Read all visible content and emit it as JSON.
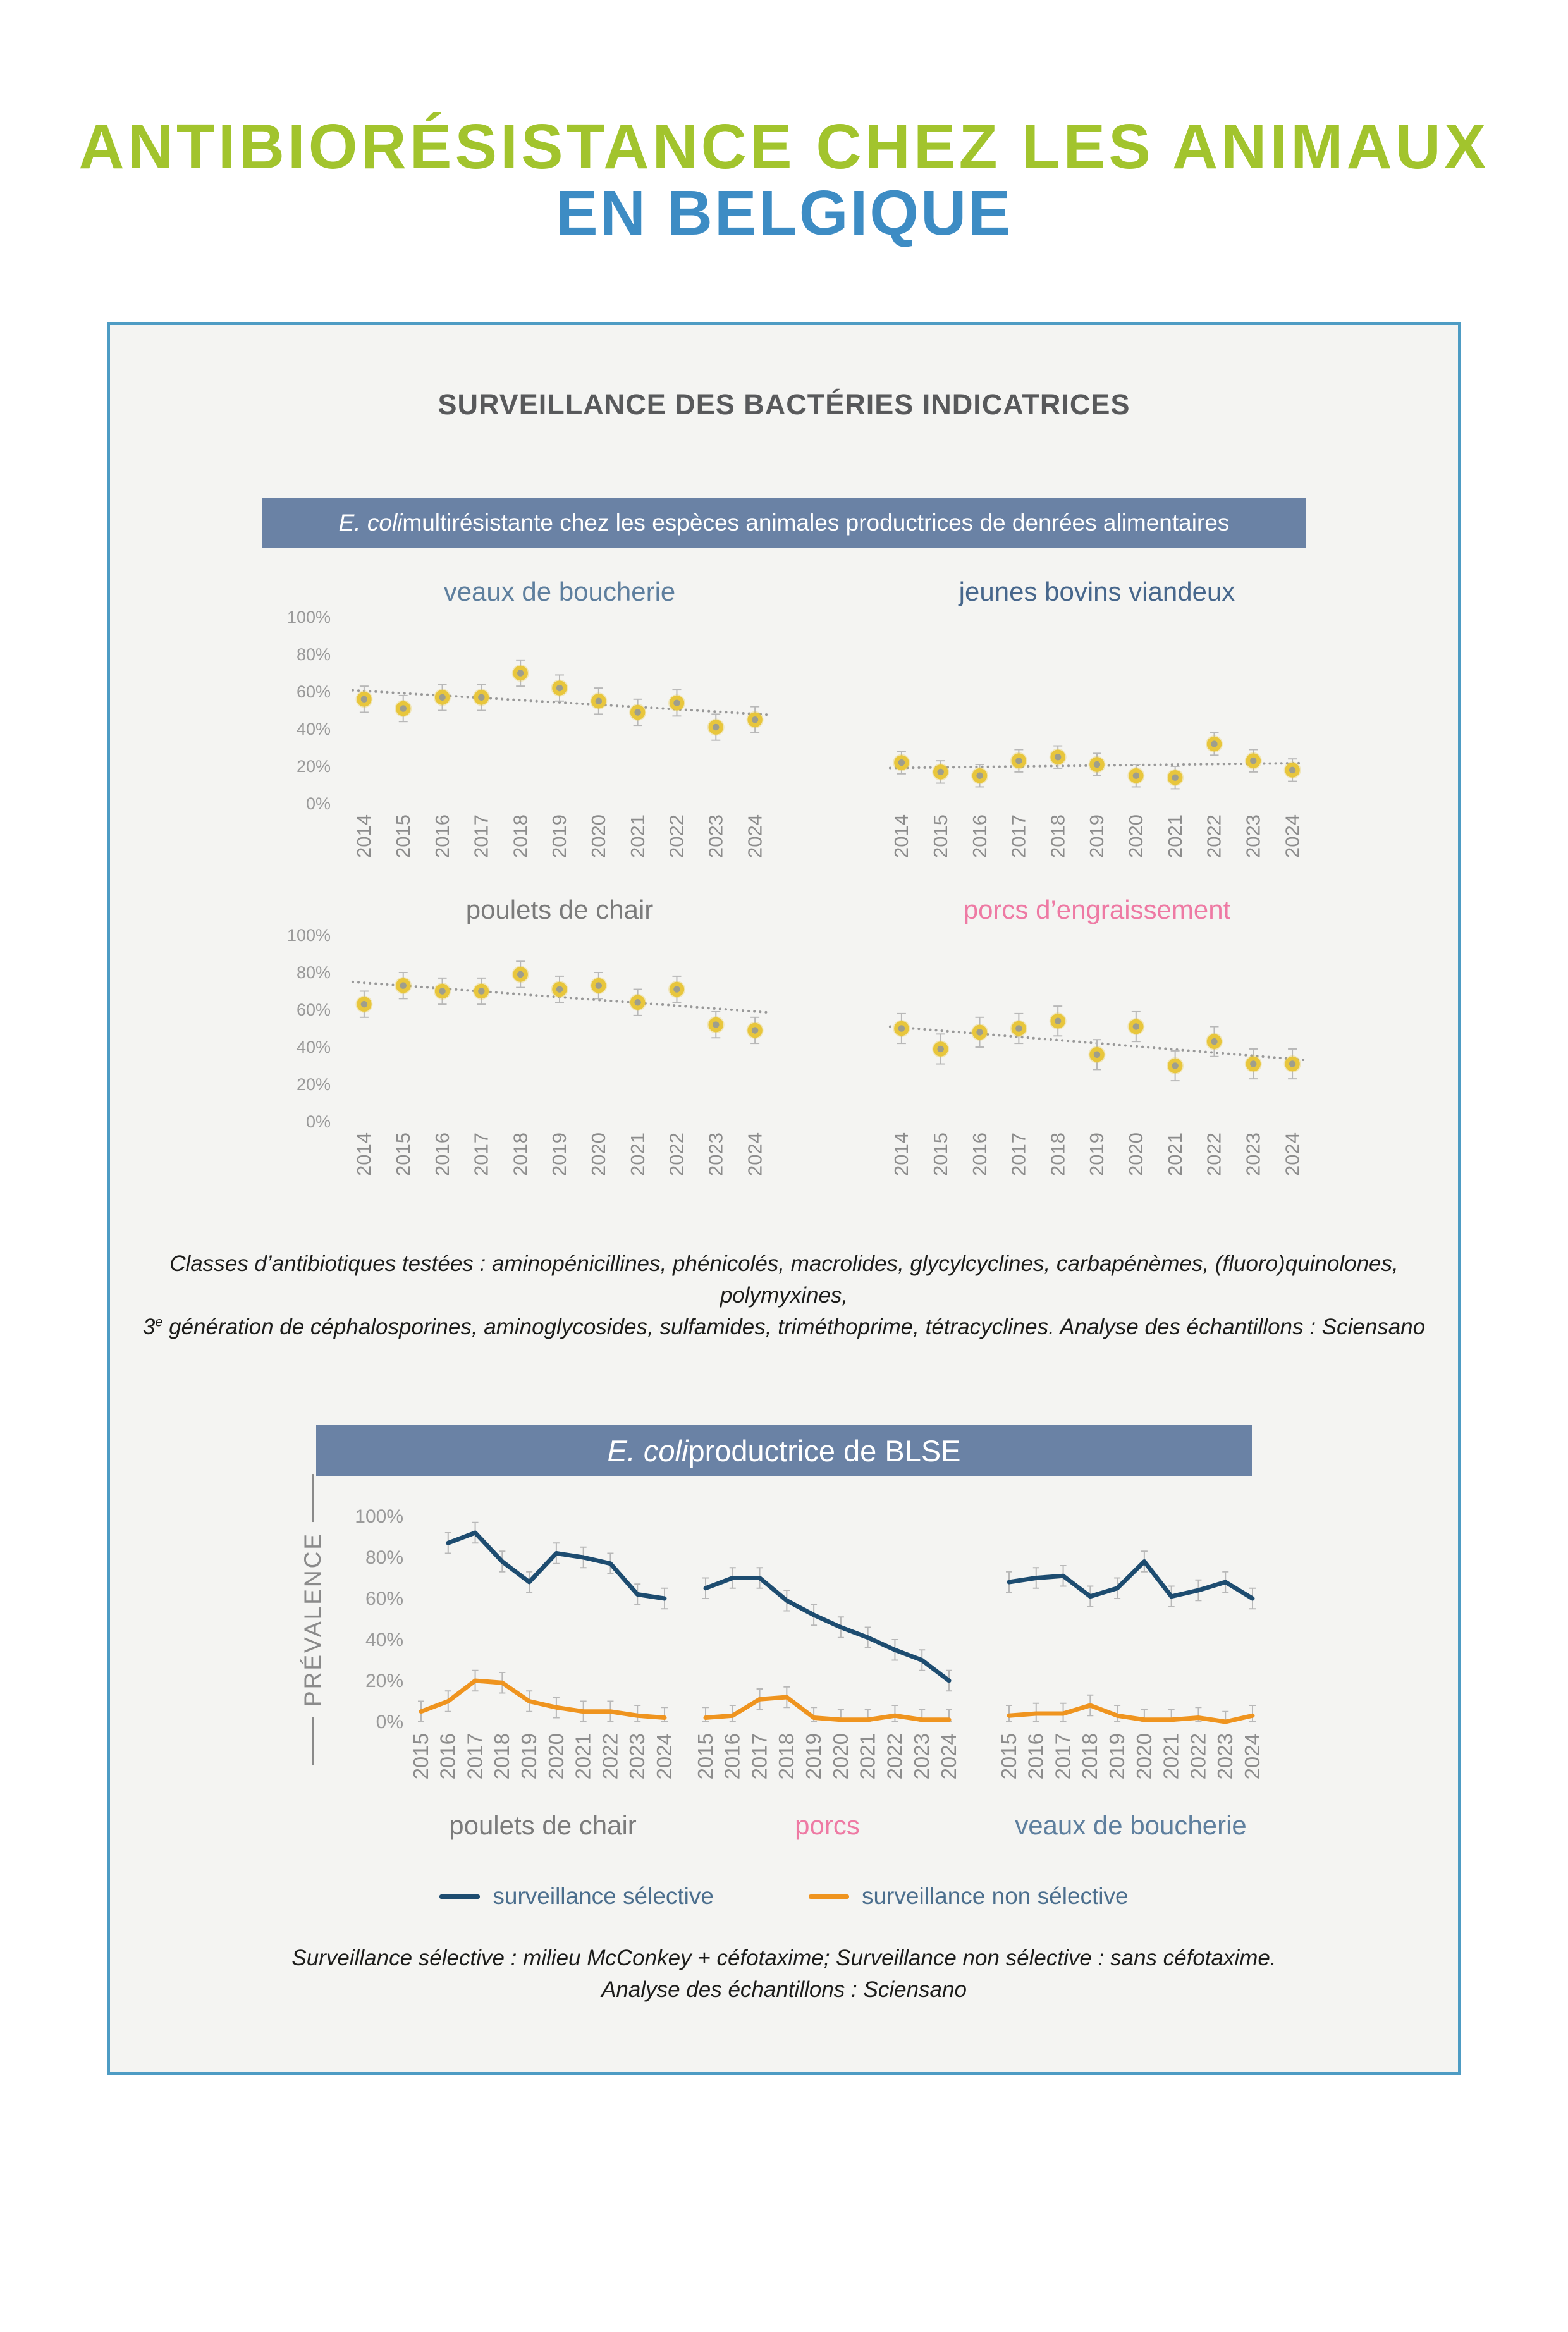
{
  "colors": {
    "title_green": "#a2c42d",
    "title_blue": "#3d8cc4",
    "panel_border": "#4e9cc4",
    "panel_bg": "#f4f4f2",
    "banner_bg": "#6a82a5",
    "marker_ring_yellow": "#e8c63c",
    "marker_center_gray": "#9e9e8d",
    "errorbar_gray": "#b8b8b8",
    "trend_gray": "#999999",
    "tick_gray": "#8c8c8c"
  },
  "header": {
    "title_line1": "ANTIBIORÉSISTANCE CHEZ LES ANIMAUX",
    "title_line2": "EN BELGIQUE"
  },
  "panel": {
    "section_title": "SURVEILLANCE DES BACTÉRIES INDICATRICES",
    "banner1": {
      "species_italic": "E. coli",
      "text": " multirésistante chez les espèces animales productrices de denrées alimentaires"
    },
    "note1": {
      "line1": "Classes d’antibiotiques testées : aminopénicillines, phénicolés, macrolides, glycylcyclines, carbapénèmes, (fluoro)quinolones, polymyxines,",
      "line2_start": "3",
      "line2_sup": "e",
      "line2_rest": " génération de céphalosporines, aminoglycosides, sulfamides, triméthoprime, tétracyclines. Analyse des échantillons : Sciensano"
    },
    "banner2": {
      "species_italic": "E. coli",
      "text": " productrice de BLSE"
    },
    "note2": {
      "line1": "Surveillance sélective : milieu McConkey + céfotaxime; Surveillance non sélective : sans céfotaxime.",
      "line2": "Analyse des échantillons : Sciensano"
    }
  },
  "chart_data": [
    {
      "id": "veaux-top",
      "type": "scatter",
      "title": "veaux de boucherie",
      "title_color": "#5e7f9e",
      "show_yticks": true,
      "x": [
        "2014",
        "2015",
        "2016",
        "2017",
        "2018",
        "2019",
        "2020",
        "2021",
        "2022",
        "2023",
        "2024"
      ],
      "values": [
        56,
        51,
        57,
        57,
        70,
        62,
        55,
        49,
        54,
        41,
        45
      ],
      "err": 7,
      "trend": true,
      "ylim": [
        0,
        100
      ],
      "yticks_pct": [
        0,
        20,
        40,
        60,
        80,
        100
      ]
    },
    {
      "id": "bovins-top",
      "type": "scatter",
      "title": "jeunes bovins viandeux",
      "title_color": "#47678c",
      "show_yticks": false,
      "x": [
        "2014",
        "2015",
        "2016",
        "2017",
        "2018",
        "2019",
        "2020",
        "2021",
        "2022",
        "2023",
        "2024"
      ],
      "values": [
        22,
        17,
        15,
        23,
        25,
        21,
        15,
        14,
        32,
        23,
        18
      ],
      "err": 6,
      "trend": true,
      "ylim": [
        0,
        100
      ],
      "yticks_pct": [
        0,
        20,
        40,
        60,
        80,
        100
      ]
    },
    {
      "id": "poulets-top",
      "type": "scatter",
      "title": "poulets de chair",
      "title_color": "#7b7b7b",
      "show_yticks": true,
      "x": [
        "2014",
        "2015",
        "2016",
        "2017",
        "2018",
        "2019",
        "2020",
        "2021",
        "2022",
        "2023",
        "2024"
      ],
      "values": [
        63,
        73,
        70,
        70,
        79,
        71,
        73,
        64,
        71,
        52,
        49
      ],
      "err": 7,
      "trend": true,
      "ylim": [
        0,
        100
      ],
      "yticks_pct": [
        0,
        20,
        40,
        60,
        80,
        100
      ]
    },
    {
      "id": "porcs-top",
      "type": "scatter",
      "title": "porcs d’engraissement",
      "title_color": "#ee7aa4",
      "show_yticks": false,
      "x": [
        "2014",
        "2015",
        "2016",
        "2017",
        "2018",
        "2019",
        "2020",
        "2021",
        "2022",
        "2023",
        "2024"
      ],
      "values": [
        50,
        39,
        48,
        50,
        54,
        36,
        51,
        30,
        43,
        31,
        31
      ],
      "err": 8,
      "trend": true,
      "ylim": [
        0,
        100
      ],
      "yticks_pct": [
        0,
        20,
        40,
        60,
        80,
        100
      ]
    },
    {
      "id": "blse",
      "type": "line",
      "x": [
        "2015",
        "2016",
        "2017",
        "2018",
        "2019",
        "2020",
        "2021",
        "2022",
        "2023",
        "2024"
      ],
      "ylim": [
        0,
        100
      ],
      "yticks_pct": [
        0,
        20,
        40,
        60,
        80,
        100
      ],
      "ylabel": "PRÉVALENCE",
      "err": 5,
      "series_colors": {
        "selective": "#1d4c70",
        "non_selective": "#ef941f"
      },
      "panels": [
        {
          "label": "poulets de chair",
          "label_color": "#7b7b7b",
          "selective": [
            null,
            87,
            92,
            78,
            68,
            82,
            80,
            77,
            62,
            60
          ],
          "non_selective": [
            5,
            10,
            20,
            19,
            10,
            7,
            5,
            5,
            3,
            2
          ]
        },
        {
          "label": "porcs",
          "label_color": "#ee7aa4",
          "selective": [
            65,
            70,
            70,
            59,
            52,
            46,
            41,
            35,
            30,
            20
          ],
          "non_selective": [
            2,
            3,
            11,
            12,
            2,
            1,
            1,
            3,
            1,
            1
          ]
        },
        {
          "label": "veaux de boucherie",
          "label_color": "#5e7f9e",
          "selective": [
            68,
            70,
            71,
            61,
            65,
            78,
            61,
            64,
            68,
            60
          ],
          "non_selective": [
            3,
            4,
            4,
            8,
            3,
            1,
            1,
            2,
            0,
            3
          ]
        }
      ],
      "legend": [
        {
          "key": "selective",
          "label": "surveillance sélective"
        },
        {
          "key": "non_selective",
          "label": "surveillance non sélective"
        }
      ]
    }
  ]
}
